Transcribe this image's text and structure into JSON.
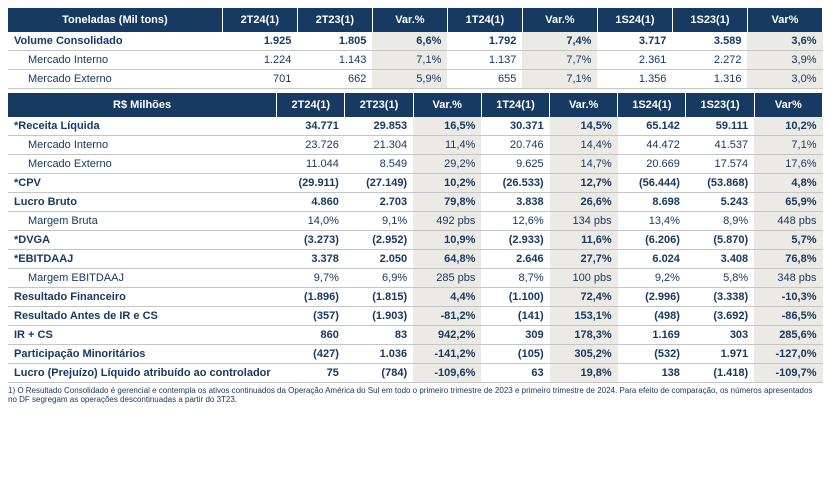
{
  "table1": {
    "headers": [
      "Toneladas (Mil tons)",
      "2T24(1)",
      "2T23(1)",
      "Var.%",
      "1T24(1)",
      "Var.%",
      "1S24(1)",
      "1S23(1)",
      "Var%"
    ],
    "rows": [
      {
        "bold": true,
        "indent": false,
        "cells": [
          "Volume Consolidado",
          "1.925",
          "1.805",
          "6,6%",
          "1.792",
          "7,4%",
          "3.717",
          "3.589",
          "3,6%"
        ]
      },
      {
        "bold": false,
        "indent": true,
        "cells": [
          "Mercado Interno",
          "1.224",
          "1.143",
          "7,1%",
          "1.137",
          "7,7%",
          "2.361",
          "2.272",
          "3,9%"
        ]
      },
      {
        "bold": false,
        "indent": true,
        "cells": [
          "Mercado Externo",
          "701",
          "662",
          "5,9%",
          "655",
          "7,1%",
          "1.356",
          "1.316",
          "3,0%"
        ]
      }
    ]
  },
  "table2": {
    "headers": [
      "R$ Milhões",
      "2T24(1)",
      "2T23(1)",
      "Var.%",
      "1T24(1)",
      "Var.%",
      "1S24(1)",
      "1S23(1)",
      "Var%"
    ],
    "rows": [
      {
        "bold": true,
        "indent": false,
        "cells": [
          "*Receita Líquida",
          "34.771",
          "29.853",
          "16,5%",
          "30.371",
          "14,5%",
          "65.142",
          "59.111",
          "10,2%"
        ]
      },
      {
        "bold": false,
        "indent": true,
        "cells": [
          "Mercado Interno",
          "23.726",
          "21.304",
          "11,4%",
          "20.746",
          "14,4%",
          "44.472",
          "41.537",
          "7,1%"
        ]
      },
      {
        "bold": false,
        "indent": true,
        "cells": [
          "Mercado Externo",
          "11.044",
          "8.549",
          "29,2%",
          "9.625",
          "14,7%",
          "20.669",
          "17.574",
          "17,6%"
        ]
      },
      {
        "bold": true,
        "indent": false,
        "cells": [
          "*CPV",
          "(29.911)",
          "(27.149)",
          "10,2%",
          "(26.533)",
          "12,7%",
          "(56.444)",
          "(53.868)",
          "4,8%"
        ]
      },
      {
        "bold": true,
        "indent": false,
        "cells": [
          "Lucro Bruto",
          "4.860",
          "2.703",
          "79,8%",
          "3.838",
          "26,6%",
          "8.698",
          "5.243",
          "65,9%"
        ]
      },
      {
        "bold": false,
        "indent": true,
        "cells": [
          "Margem Bruta",
          "14,0%",
          "9,1%",
          "492 pbs",
          "12,6%",
          "134 pbs",
          "13,4%",
          "8,9%",
          "448 pbs"
        ]
      },
      {
        "bold": true,
        "indent": false,
        "cells": [
          "*DVGA",
          "(3.273)",
          "(2.952)",
          "10,9%",
          "(2.933)",
          "11,6%",
          "(6.206)",
          "(5.870)",
          "5,7%"
        ]
      },
      {
        "bold": true,
        "indent": false,
        "cells": [
          "*EBITDAAJ",
          "3.378",
          "2.050",
          "64,8%",
          "2.646",
          "27,7%",
          "6.024",
          "3.408",
          "76,8%"
        ]
      },
      {
        "bold": false,
        "indent": true,
        "cells": [
          "Margem EBITDAAJ",
          "9,7%",
          "6,9%",
          "285 pbs",
          "8,7%",
          "100 pbs",
          "9,2%",
          "5,8%",
          "348 pbs"
        ]
      },
      {
        "bold": true,
        "indent": false,
        "cells": [
          "Resultado Financeiro",
          "(1.896)",
          "(1.815)",
          "4,4%",
          "(1.100)",
          "72,4%",
          "(2.996)",
          "(3.338)",
          "-10,3%"
        ]
      },
      {
        "bold": true,
        "indent": false,
        "cells": [
          "Resultado Antes de IR e CS",
          "(357)",
          "(1.903)",
          "-81,2%",
          "(141)",
          "153,1%",
          "(498)",
          "(3.692)",
          "-86,5%"
        ]
      },
      {
        "bold": true,
        "indent": false,
        "cells": [
          "IR + CS",
          "860",
          "83",
          "942,2%",
          "309",
          "178,3%",
          "1.169",
          "303",
          "285,6%"
        ]
      },
      {
        "bold": true,
        "indent": false,
        "cells": [
          "Participação Minoritários",
          "(427)",
          "1.036",
          "-141,2%",
          "(105)",
          "305,2%",
          "(532)",
          "1.971",
          "-127,0%"
        ]
      },
      {
        "bold": true,
        "indent": false,
        "cells": [
          "Lucro (Prejuízo) Líquido atribuído ao controlador",
          "75",
          "(784)",
          "-109,6%",
          "63",
          "19,8%",
          "138",
          "(1.418)",
          "-109,7%"
        ]
      }
    ]
  },
  "footnote": "1) O Resultado Consolidado é gerencial e contempla os ativos continuados da Operação América do Sul em todo o primeiro trimestre de 2023 e primeiro trimestre de 2024. Para efeito de comparação, os números apresentados no DF segregam as operações descontinuadas a partir do 3T23.",
  "shadedCols": [
    3,
    5,
    8
  ],
  "style": {
    "header_bg": "#173a63",
    "header_fg": "#ffffff",
    "text_fg": "#173a63",
    "shaded_bg": "#eceae4",
    "border": "#c5c5c5"
  }
}
